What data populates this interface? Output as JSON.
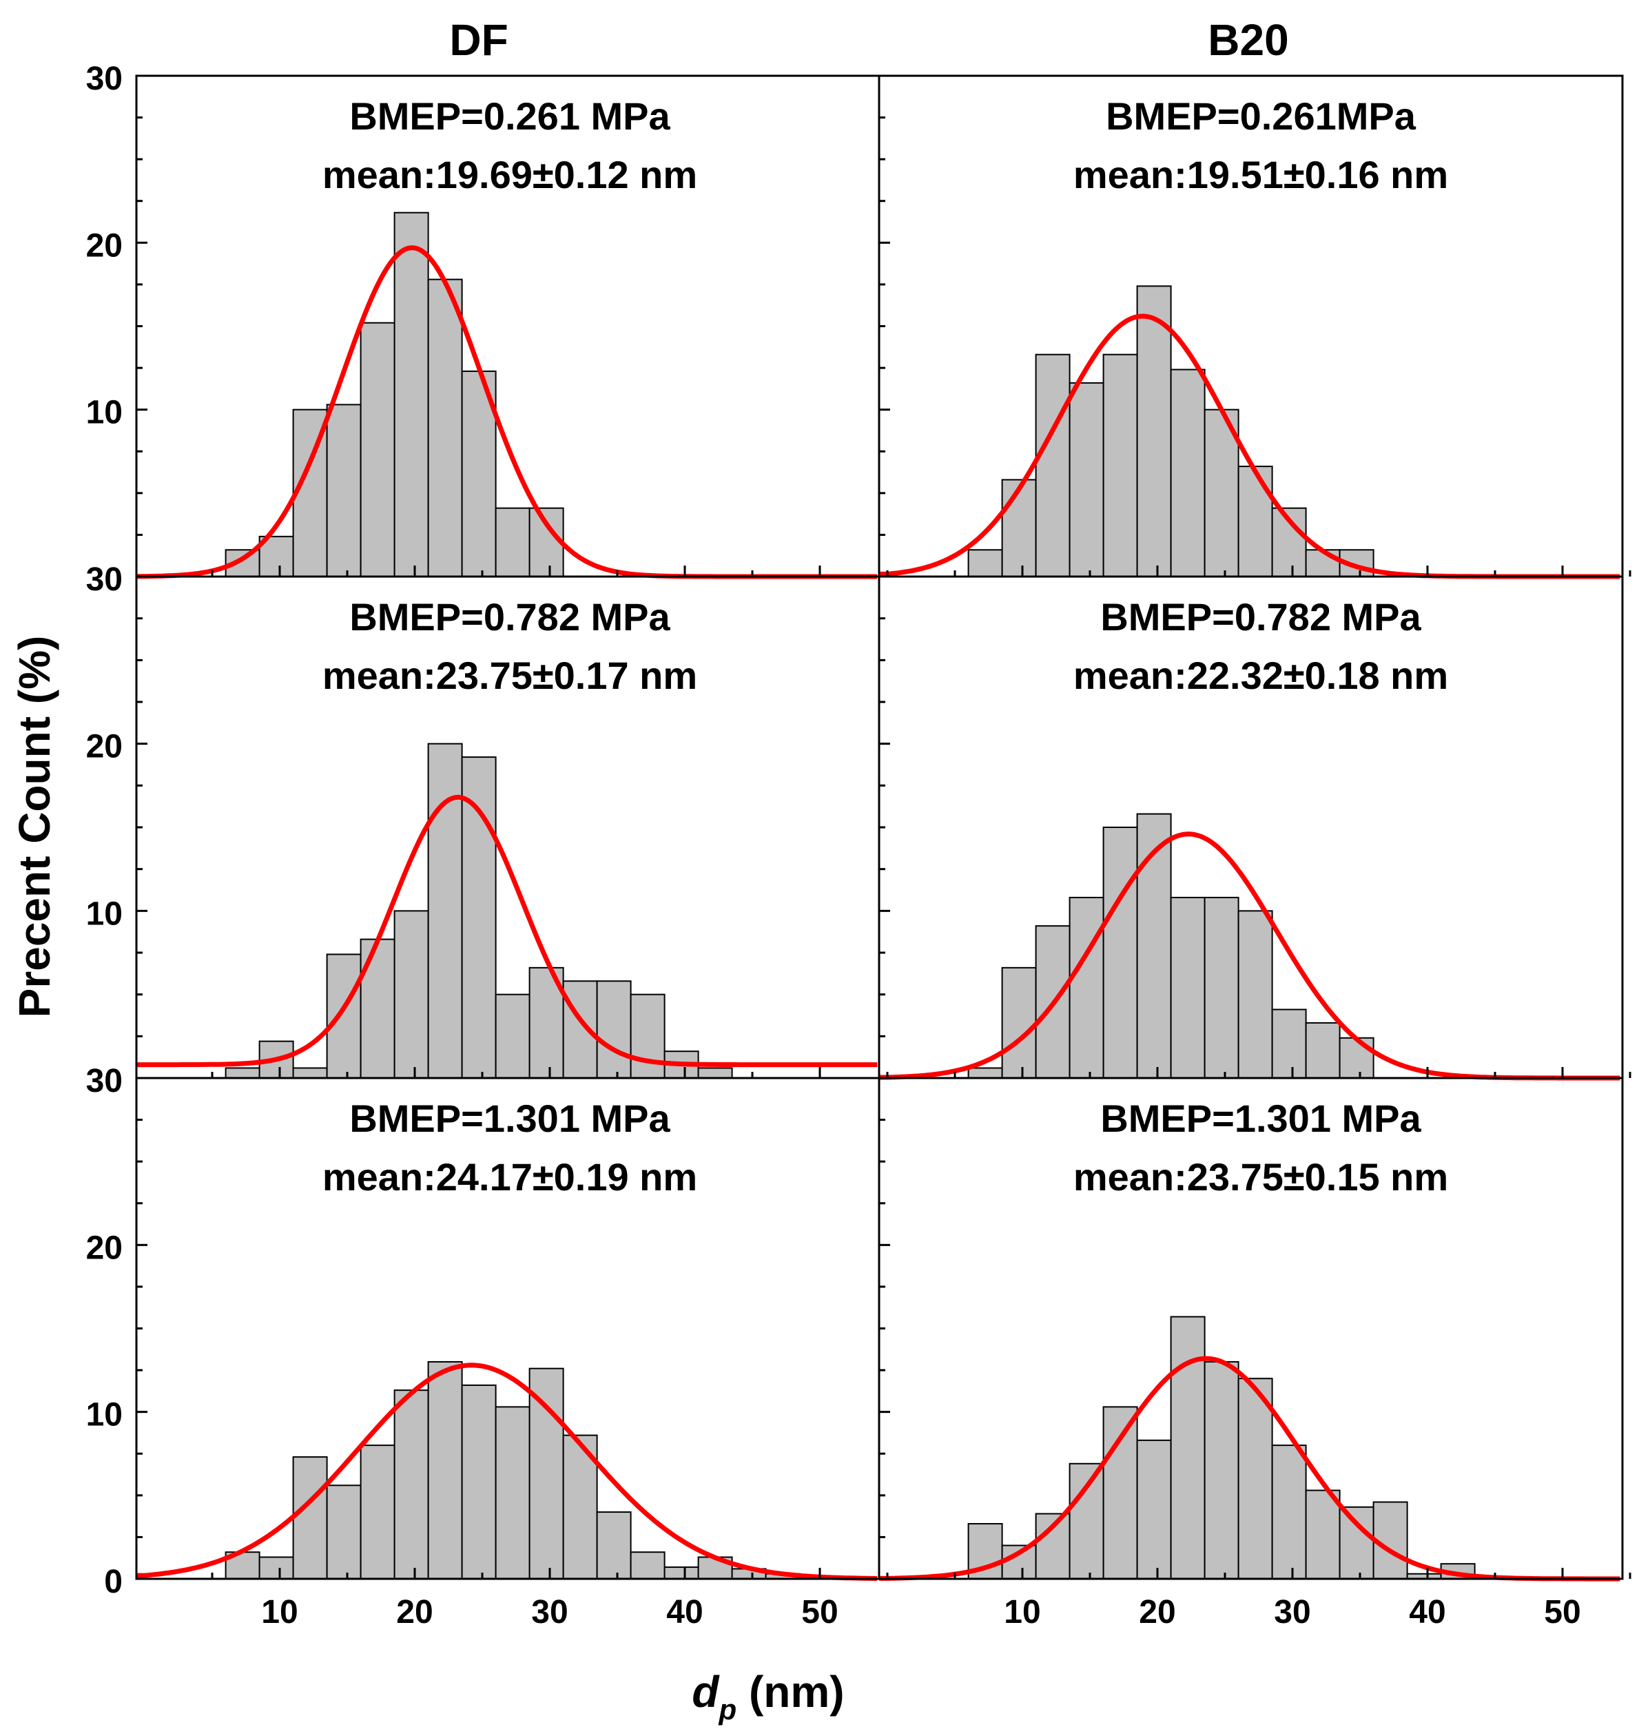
{
  "figure": {
    "ylabel": "Precent Count (%)",
    "xlabel_main": "d",
    "xlabel_sub": "p",
    "xlabel_unit": " (nm)",
    "column_titles": [
      "DF",
      "B20"
    ],
    "y_tick_labels": [
      "30",
      "20",
      "10",
      "0"
    ],
    "x_tick_labels": [
      "10",
      "20",
      "30",
      "40",
      "50"
    ]
  },
  "colors": {
    "bar_fill": "#c0c0c0",
    "bar_stroke": "#000000",
    "fit_line": "#ff0000",
    "axis": "#000000"
  },
  "chart_data": [
    {
      "id": "df-a",
      "type": "bar",
      "column": "DF",
      "row": 0,
      "label1": "BMEP=0.261 MPa",
      "label2": "mean:19.69±0.12 nm",
      "xlim": [
        0,
        55
      ],
      "ylim": [
        0,
        30
      ],
      "bin_width": 2.5,
      "bin_start": 6,
      "values": [
        1.6,
        2.4,
        10.0,
        10.3,
        15.2,
        21.8,
        17.8,
        12.3,
        4.1,
        4.1
      ],
      "fit": {
        "mean": 19.8,
        "sigma": 5.2,
        "peak": 19.7,
        "baseline": 0
      }
    },
    {
      "id": "b20-a",
      "type": "bar",
      "column": "B20",
      "row": 0,
      "label1": "BMEP=0.261MPa",
      "label2": "mean:19.51±0.16 nm",
      "xlim": [
        0,
        55
      ],
      "ylim": [
        0,
        30
      ],
      "bin_width": 2.5,
      "bin_start": 6,
      "values": [
        1.6,
        5.8,
        13.3,
        11.6,
        13.3,
        17.4,
        12.4,
        10.0,
        6.6,
        4.1,
        1.6,
        1.6
      ],
      "fit": {
        "mean": 18.9,
        "sigma": 6.2,
        "peak": 15.6,
        "baseline": 0
      }
    },
    {
      "id": "df-b",
      "type": "bar",
      "column": "DF",
      "row": 1,
      "label1": "BMEP=0.782 MPa",
      "label2": "mean:23.75±0.17 nm",
      "xlim": [
        0,
        55
      ],
      "ylim": [
        0,
        30
      ],
      "bin_width": 2.5,
      "bin_start": 6,
      "values": [
        0.6,
        2.2,
        0.6,
        7.4,
        8.3,
        10.0,
        20.0,
        19.2,
        5.0,
        6.6,
        5.8,
        5.8,
        5.0,
        1.6,
        0.6
      ],
      "fit": {
        "mean": 23.2,
        "sigma": 4.8,
        "peak": 16.8,
        "baseline": 0.8
      }
    },
    {
      "id": "b20-b",
      "type": "bar",
      "column": "B20",
      "row": 1,
      "label1": "BMEP=0.782 MPa",
      "label2": "mean:22.32±0.18 nm",
      "xlim": [
        0,
        55
      ],
      "ylim": [
        0,
        30
      ],
      "bin_width": 2.5,
      "bin_start": 6,
      "values": [
        0.6,
        6.6,
        9.1,
        10.8,
        15.0,
        15.8,
        10.8,
        10.8,
        10.0,
        4.1,
        3.3,
        2.4
      ],
      "fit": {
        "mean": 22.3,
        "sigma": 6.5,
        "peak": 14.6,
        "baseline": 0
      }
    },
    {
      "id": "df-c",
      "type": "bar",
      "column": "DF",
      "row": 2,
      "label1": "BMEP=1.301 MPa",
      "label2": "mean:24.17±0.19 nm",
      "xlim": [
        0,
        55
      ],
      "ylim": [
        0,
        30
      ],
      "bin_width": 2.5,
      "bin_start": 6,
      "values": [
        1.6,
        1.3,
        7.3,
        5.6,
        8.0,
        11.3,
        13.0,
        11.6,
        10.3,
        12.6,
        8.6,
        4.0,
        1.6,
        0.7,
        1.3,
        0.6,
        0.3
      ],
      "fit": {
        "mean": 24.2,
        "sigma": 8.4,
        "peak": 12.8,
        "baseline": 0
      }
    },
    {
      "id": "b20-c",
      "type": "bar",
      "column": "B20",
      "row": 2,
      "label1": "BMEP=1.301 MPa",
      "label2": "mean:23.75±0.15 nm",
      "xlim": [
        0,
        55
      ],
      "ylim": [
        0,
        30
      ],
      "bin_width": 2.5,
      "bin_start": 6,
      "values": [
        3.3,
        2.0,
        3.9,
        6.9,
        10.3,
        8.3,
        15.7,
        13.0,
        12.0,
        8.0,
        5.3,
        4.3,
        4.6,
        0.3,
        0.9
      ],
      "fit": {
        "mean": 23.6,
        "sigma": 6.7,
        "peak": 13.2,
        "baseline": 0
      }
    }
  ]
}
